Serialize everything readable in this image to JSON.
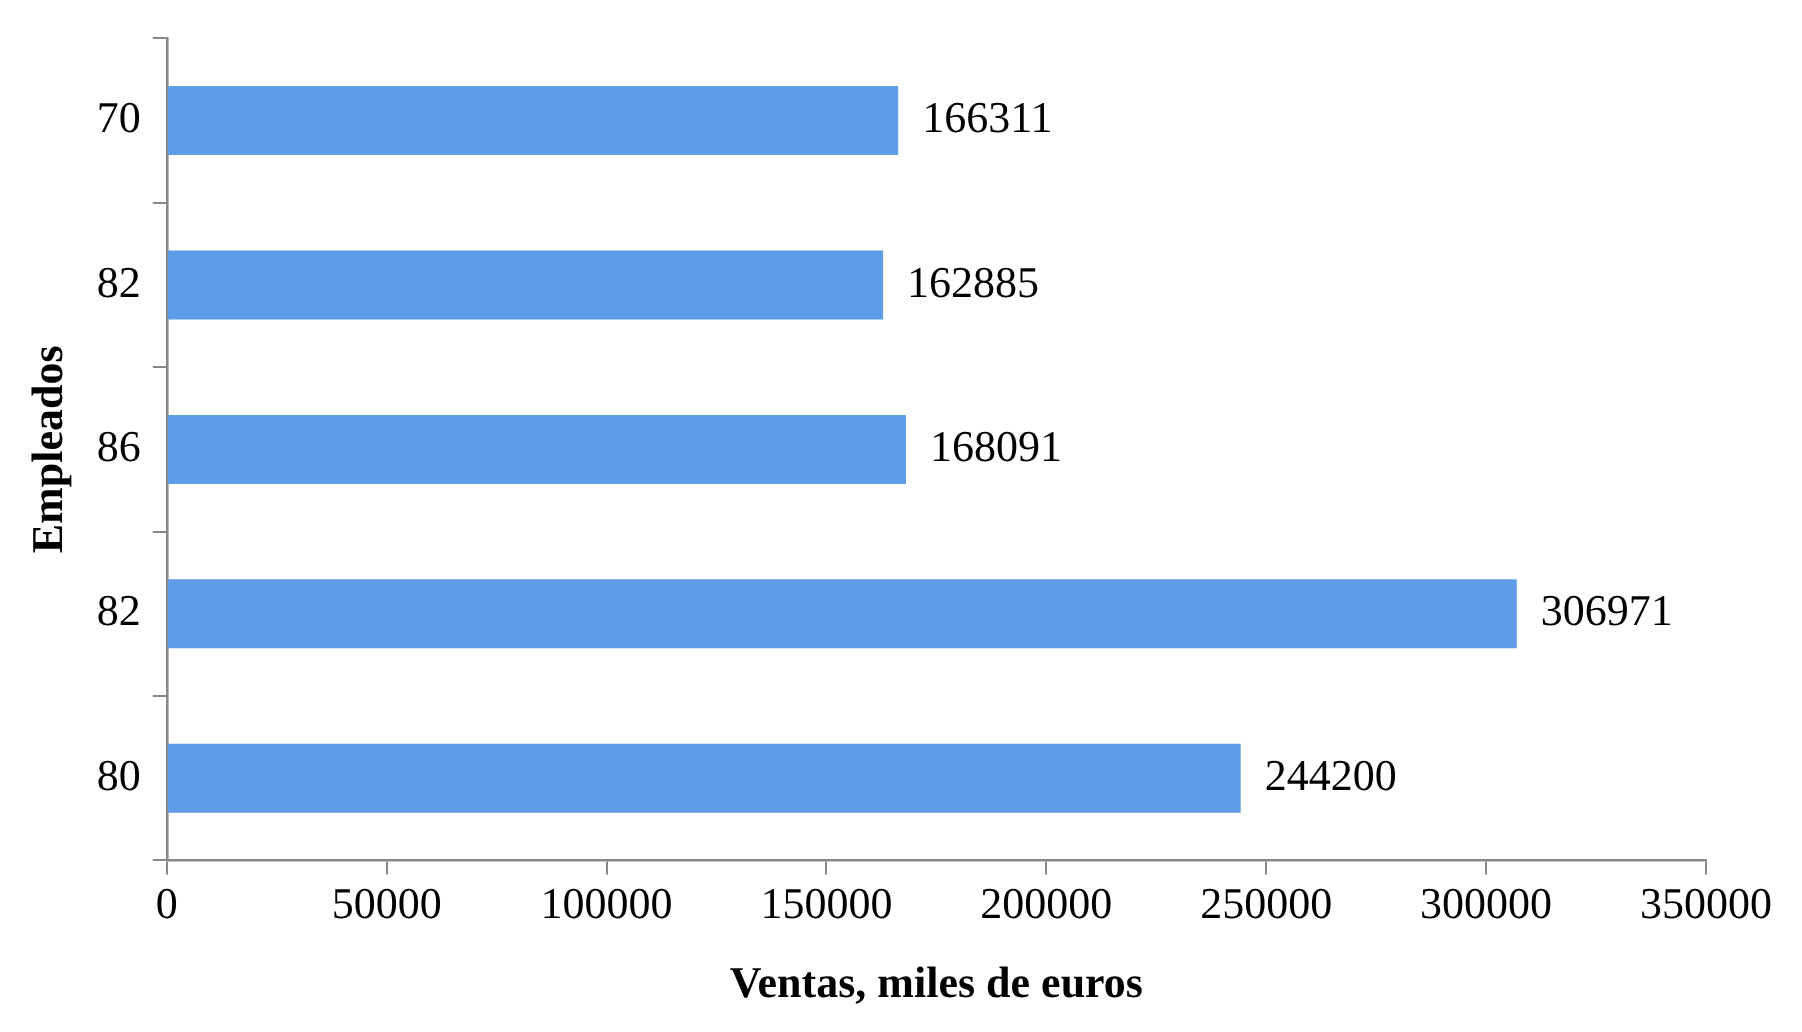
{
  "chart_data": {
    "type": "bar",
    "orientation": "horizontal",
    "xlabel": "Ventas, miles de euros",
    "ylabel": "Empleados",
    "categories": [
      "70",
      "82",
      "86",
      "82",
      "80"
    ],
    "values": [
      166311,
      162885,
      168091,
      306971,
      244200
    ],
    "color": "#5f9ee6",
    "xlim": [
      0,
      350000
    ],
    "xticks": [
      0,
      50000,
      100000,
      150000,
      200000,
      250000,
      300000,
      350000
    ],
    "data_labels": true,
    "grid": false,
    "legend": false
  }
}
